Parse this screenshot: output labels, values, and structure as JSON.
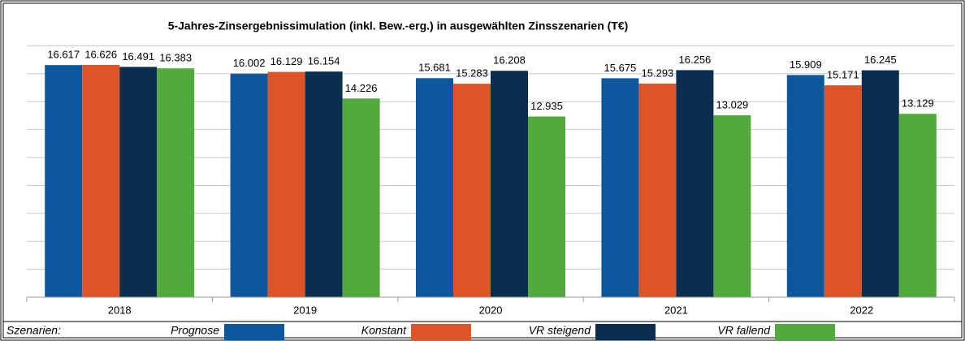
{
  "chart_data": {
    "type": "bar",
    "title": "5-Jahres-Zinsergebnissimulation (inkl. Bew.-erg.) in ausgewählten Zinsszenarien (T€)",
    "categories": [
      "2018",
      "2019",
      "2020",
      "2021",
      "2022"
    ],
    "legend_title": "Szenarien:",
    "series": [
      {
        "name": "Prognose",
        "color": "#0d589c",
        "values": [
          16617,
          16002,
          15681,
          15675,
          15909
        ],
        "value_labels": [
          "16.617",
          "16.002",
          "15.681",
          "15.675",
          "15.909"
        ]
      },
      {
        "name": "Konstant",
        "color": "#dd5426",
        "values": [
          16626,
          16129,
          15283,
          15293,
          15171
        ],
        "value_labels": [
          "16.626",
          "16.129",
          "15.283",
          "15.293",
          "15.171"
        ]
      },
      {
        "name": "VR steigend",
        "color": "#0b2e50",
        "values": [
          16491,
          16154,
          16208,
          16256,
          16245
        ],
        "value_labels": [
          "16.491",
          "16.154",
          "16.208",
          "16.256",
          "16.245"
        ]
      },
      {
        "name": "VR fallend",
        "color": "#52a93c",
        "values": [
          16383,
          14226,
          12935,
          13029,
          13129
        ],
        "value_labels": [
          "16.383",
          "14.226",
          "12.935",
          "13.029",
          "13.129"
        ]
      }
    ],
    "ylim": [
      0,
      20000
    ],
    "yticks": [
      0,
      2000,
      4000,
      6000,
      8000,
      10000,
      12000,
      14000,
      16000,
      18000
    ],
    "grid": true
  }
}
